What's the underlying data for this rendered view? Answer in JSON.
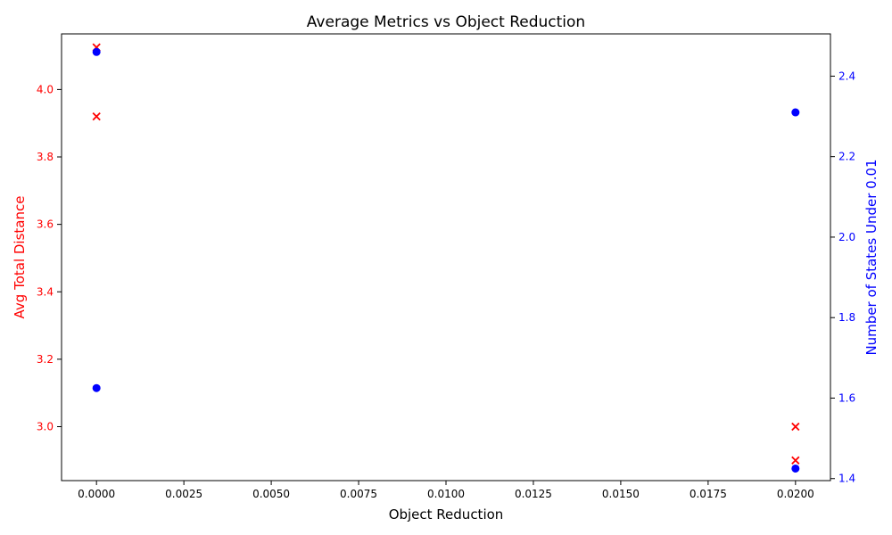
{
  "chart_data": {
    "type": "scatter",
    "title": "Average Metrics vs Object Reduction",
    "xlabel": "Object Reduction",
    "ylabel_left": "Avg Total Distance",
    "ylabel_right": "Number of States Under 0.01",
    "xlim": [
      -0.001,
      0.021
    ],
    "ylim_left": [
      2.84,
      4.165
    ],
    "ylim_right": [
      1.395,
      2.505
    ],
    "x_ticks": [
      0.0,
      0.0025,
      0.005,
      0.0075,
      0.01,
      0.0125,
      0.015,
      0.0175,
      0.02
    ],
    "x_tick_labels": [
      "0.0000",
      "0.0025",
      "0.0050",
      "0.0075",
      "0.0100",
      "0.0125",
      "0.0150",
      "0.0175",
      "0.0200"
    ],
    "y_left_ticks": [
      3.0,
      3.2,
      3.4,
      3.6,
      3.8,
      4.0
    ],
    "y_left_tick_labels": [
      "3.0",
      "3.2",
      "3.4",
      "3.6",
      "3.8",
      "4.0"
    ],
    "y_right_ticks": [
      1.4,
      1.6,
      1.8,
      2.0,
      2.2,
      2.4
    ],
    "y_right_tick_labels": [
      "1.4",
      "1.6",
      "1.8",
      "2.0",
      "2.2",
      "2.4"
    ],
    "left_color": "#ff0000",
    "right_color": "#0000ff",
    "grid": false,
    "series": [
      {
        "axis": "left",
        "marker": "x",
        "color": "#ff0000",
        "points": [
          {
            "x": 0.0,
            "y": 3.92
          },
          {
            "x": 0.0,
            "y": 4.125
          },
          {
            "x": 0.02,
            "y": 3.0
          },
          {
            "x": 0.02,
            "y": 2.9
          }
        ]
      },
      {
        "axis": "right",
        "marker": "o",
        "color": "#0000ff",
        "points": [
          {
            "x": 0.0,
            "y": 2.46
          },
          {
            "x": 0.0,
            "y": 1.625
          },
          {
            "x": 0.02,
            "y": 2.31
          },
          {
            "x": 0.02,
            "y": 1.425
          }
        ]
      }
    ]
  }
}
